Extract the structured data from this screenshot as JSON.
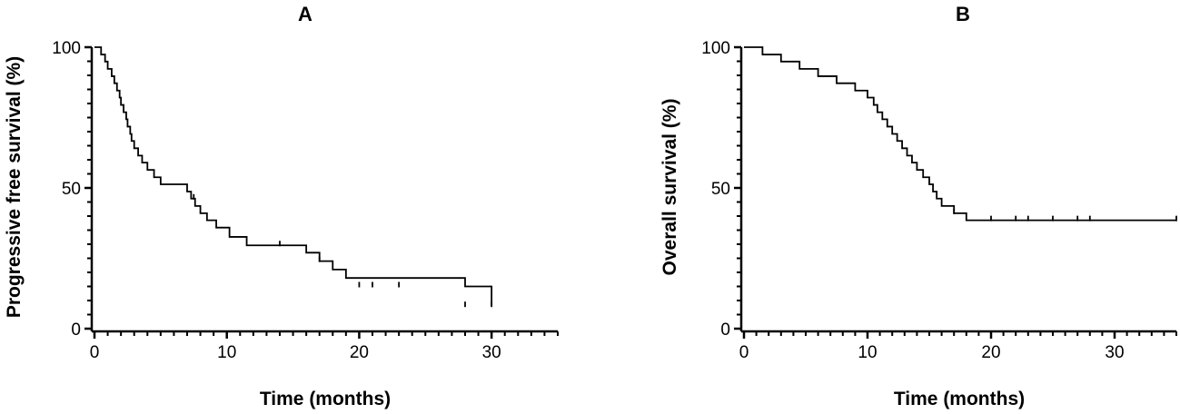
{
  "figure": {
    "colors": {
      "line": "#000000",
      "background": "#ffffff"
    }
  },
  "chart_data": [
    {
      "type": "line",
      "subtype": "kaplan-meier-step",
      "title": "A",
      "xlabel": "Time (months)",
      "ylabel": "Progressive free survival (%)",
      "xlim": [
        0,
        35
      ],
      "ylim": [
        0,
        100
      ],
      "x_ticks": [
        0,
        10,
        20,
        30
      ],
      "y_ticks": [
        0,
        50,
        100
      ],
      "x_tick_labels": [
        "0",
        "10",
        "20",
        "30"
      ],
      "y_tick_labels": [
        "0",
        "50",
        "100"
      ],
      "x_minor_step": 1,
      "y_minor_step": 5,
      "grid": false,
      "series": [
        {
          "x": [
            0,
            0.5,
            0.8,
            1.0,
            1.3,
            1.5,
            1.7,
            1.9,
            2.0,
            2.2,
            2.4,
            2.5,
            2.7,
            2.8,
            3.0,
            3.3,
            3.6,
            4.0,
            4.5,
            5.0,
            7.0,
            7.3,
            7.6,
            8.0,
            8.5,
            9.2,
            10.2,
            11.5,
            16.0,
            17.0,
            18.0,
            19.0,
            28.0,
            30.0
          ],
          "y": [
            100,
            97.4,
            94.9,
            92.3,
            89.7,
            87.2,
            84.6,
            82.1,
            79.5,
            76.9,
            74.4,
            71.8,
            69.2,
            66.7,
            64.1,
            61.5,
            59.0,
            56.4,
            53.8,
            51.3,
            48.7,
            46.2,
            43.6,
            41.0,
            38.5,
            35.9,
            32.6,
            29.6,
            27.0,
            24.0,
            21.0,
            18.0,
            15.0,
            8.0
          ]
        }
      ],
      "censored": [
        {
          "x": 7.5,
          "y": 46.2
        },
        {
          "x": 14.0,
          "y": 29.6
        },
        {
          "x": 17.0,
          "y": 24.0
        },
        {
          "x": 20.0,
          "y": 15.0
        },
        {
          "x": 21.0,
          "y": 15.0
        },
        {
          "x": 23.0,
          "y": 15.0
        },
        {
          "x": 28.0,
          "y": 8.0
        },
        {
          "x": 30.0,
          "y": 8.0
        }
      ]
    },
    {
      "type": "line",
      "subtype": "kaplan-meier-step",
      "title": "B",
      "xlabel": "Time (months)",
      "ylabel": "Overall survival (%)",
      "xlim": [
        0,
        35
      ],
      "ylim": [
        0,
        100
      ],
      "x_ticks": [
        0,
        10,
        20,
        30
      ],
      "y_ticks": [
        0,
        50,
        100
      ],
      "x_tick_labels": [
        "0",
        "10",
        "20",
        "30"
      ],
      "y_tick_labels": [
        "0",
        "50",
        "100"
      ],
      "x_minor_step": 1,
      "y_minor_step": 5,
      "grid": false,
      "series": [
        {
          "x": [
            0,
            1.5,
            3.0,
            4.5,
            6.0,
            7.5,
            9.0,
            10.0,
            10.5,
            10.8,
            11.2,
            11.6,
            12.0,
            12.4,
            12.8,
            13.2,
            13.6,
            14.0,
            14.5,
            15.0,
            15.3,
            15.6,
            16.0,
            17.0,
            18.0,
            35.0
          ],
          "y": [
            100,
            97.4,
            94.9,
            92.3,
            89.7,
            87.2,
            84.6,
            82.1,
            79.5,
            76.9,
            74.4,
            71.8,
            69.2,
            66.7,
            64.1,
            61.5,
            59.0,
            56.4,
            53.8,
            51.3,
            48.7,
            46.2,
            43.6,
            41.0,
            38.5,
            38.5
          ]
        }
      ],
      "censored": [
        {
          "x": 17.0,
          "y": 41.0
        },
        {
          "x": 20.0,
          "y": 38.5
        },
        {
          "x": 22.0,
          "y": 38.5
        },
        {
          "x": 23.0,
          "y": 38.5
        },
        {
          "x": 25.0,
          "y": 38.5
        },
        {
          "x": 27.0,
          "y": 38.5
        },
        {
          "x": 28.0,
          "y": 38.5
        },
        {
          "x": 35.0,
          "y": 38.5
        }
      ]
    }
  ]
}
